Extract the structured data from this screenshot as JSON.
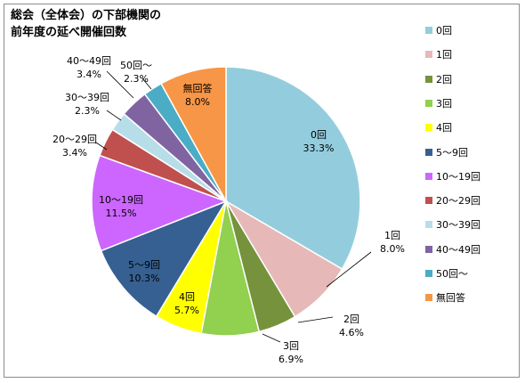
{
  "chart_data": {
    "type": "pie",
    "title_lines": [
      "総会（全体会）の下部機関の",
      "前年度の延べ開催回数"
    ],
    "slices": [
      {
        "label": "0回",
        "value": 33.3,
        "pct_label": "33.3%",
        "color": "#93cddd"
      },
      {
        "label": "1回",
        "value": 8.0,
        "pct_label": "8.0%",
        "color": "#e6b9b8"
      },
      {
        "label": "2回",
        "value": 4.6,
        "pct_label": "4.6%",
        "color": "#76923c"
      },
      {
        "label": "3回",
        "value": 6.9,
        "pct_label": "6.9%",
        "color": "#92d050"
      },
      {
        "label": "4回",
        "value": 5.7,
        "pct_label": "5.7%",
        "color": "#ffff00"
      },
      {
        "label": "5～9回",
        "value": 10.3,
        "pct_label": "10.3%",
        "color": "#366092"
      },
      {
        "label": "10～19回",
        "value": 11.5,
        "pct_label": "11.5%",
        "color": "#cc66ff"
      },
      {
        "label": "20～29回",
        "value": 3.4,
        "pct_label": "3.4%",
        "color": "#c0504d"
      },
      {
        "label": "30～39回",
        "value": 2.3,
        "pct_label": "2.3%",
        "color": "#b7dee8"
      },
      {
        "label": "40～49回",
        "value": 3.4,
        "pct_label": "3.4%",
        "color": "#8064a2"
      },
      {
        "label": "50回～",
        "value": 2.3,
        "pct_label": "2.3%",
        "color": "#4bacc6"
      },
      {
        "label": "無回答",
        "value": 8.0,
        "pct_label": "8.0%",
        "color": "#f79646"
      }
    ],
    "legend_position": "right"
  }
}
